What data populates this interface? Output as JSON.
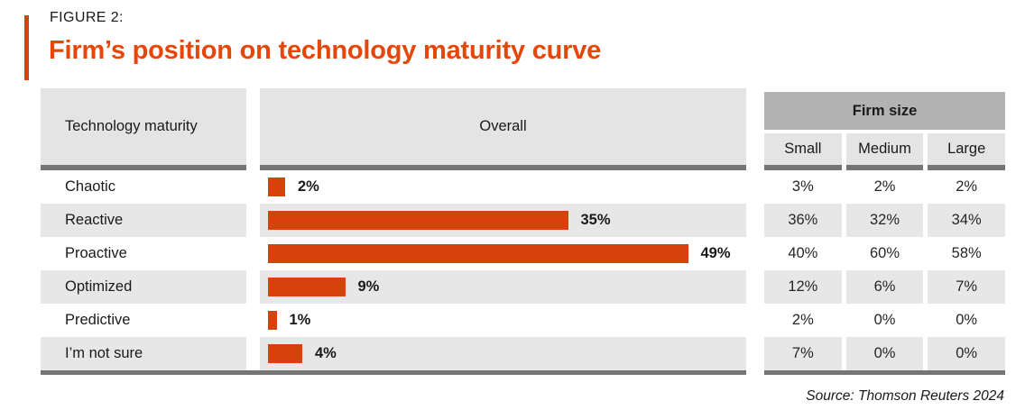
{
  "figure": {
    "eyebrow": "FIGURE 2:",
    "title": "Firm’s position on technology maturity curve",
    "source": "Source: Thomson Reuters 2024"
  },
  "colors": {
    "accent": "#D5420A",
    "title_text": "#E5470B",
    "bar": "#D5420A",
    "header_bg": "#E4E4E4",
    "row_shaded_bg": "#E7E7E7",
    "group_header_bg": "#B3B3B3",
    "rule": "#757575"
  },
  "table": {
    "maturity_header": "Technology maturity",
    "overall_header": "Overall",
    "firm_size_header": "Firm size",
    "firm_size_columns": [
      "Small",
      "Medium",
      "Large"
    ],
    "rows": [
      {
        "label": "Chaotic",
        "overall_pct": 2,
        "overall_label": "2%",
        "small": "3%",
        "medium": "2%",
        "large": "2%"
      },
      {
        "label": "Reactive",
        "overall_pct": 35,
        "overall_label": "35%",
        "small": "36%",
        "medium": "32%",
        "large": "34%"
      },
      {
        "label": "Proactive",
        "overall_pct": 49,
        "overall_label": "49%",
        "small": "40%",
        "medium": "60%",
        "large": "58%"
      },
      {
        "label": "Optimized",
        "overall_pct": 9,
        "overall_label": "9%",
        "small": "12%",
        "medium": "6%",
        "large": "7%"
      },
      {
        "label": "Predictive",
        "overall_pct": 1,
        "overall_label": "1%",
        "small": "2%",
        "medium": "0%",
        "large": "0%"
      },
      {
        "label": "I’m not sure",
        "overall_pct": 4,
        "overall_label": "4%",
        "small": "7%",
        "medium": "0%",
        "large": "0%"
      }
    ]
  },
  "chart_data": {
    "type": "bar",
    "orientation": "horizontal",
    "figure_label": "FIGURE 2:",
    "title": "Firm’s position on technology maturity curve",
    "categories": [
      "Chaotic",
      "Reactive",
      "Proactive",
      "Optimized",
      "Predictive",
      "I’m not sure"
    ],
    "series": [
      {
        "name": "Overall",
        "values": [
          2,
          35,
          49,
          9,
          1,
          4
        ]
      },
      {
        "name": "Small",
        "values": [
          3,
          36,
          40,
          12,
          2,
          7
        ]
      },
      {
        "name": "Medium",
        "values": [
          2,
          32,
          60,
          6,
          0,
          0
        ]
      },
      {
        "name": "Large",
        "values": [
          2,
          34,
          58,
          7,
          0,
          0
        ]
      }
    ],
    "unit": "%",
    "bar_color": "#D5420A",
    "value_labels_shown": true,
    "xlim": [
      0,
      56
    ],
    "grid": false,
    "legend_position": "none",
    "source": "Source: Thomson Reuters 2024"
  }
}
